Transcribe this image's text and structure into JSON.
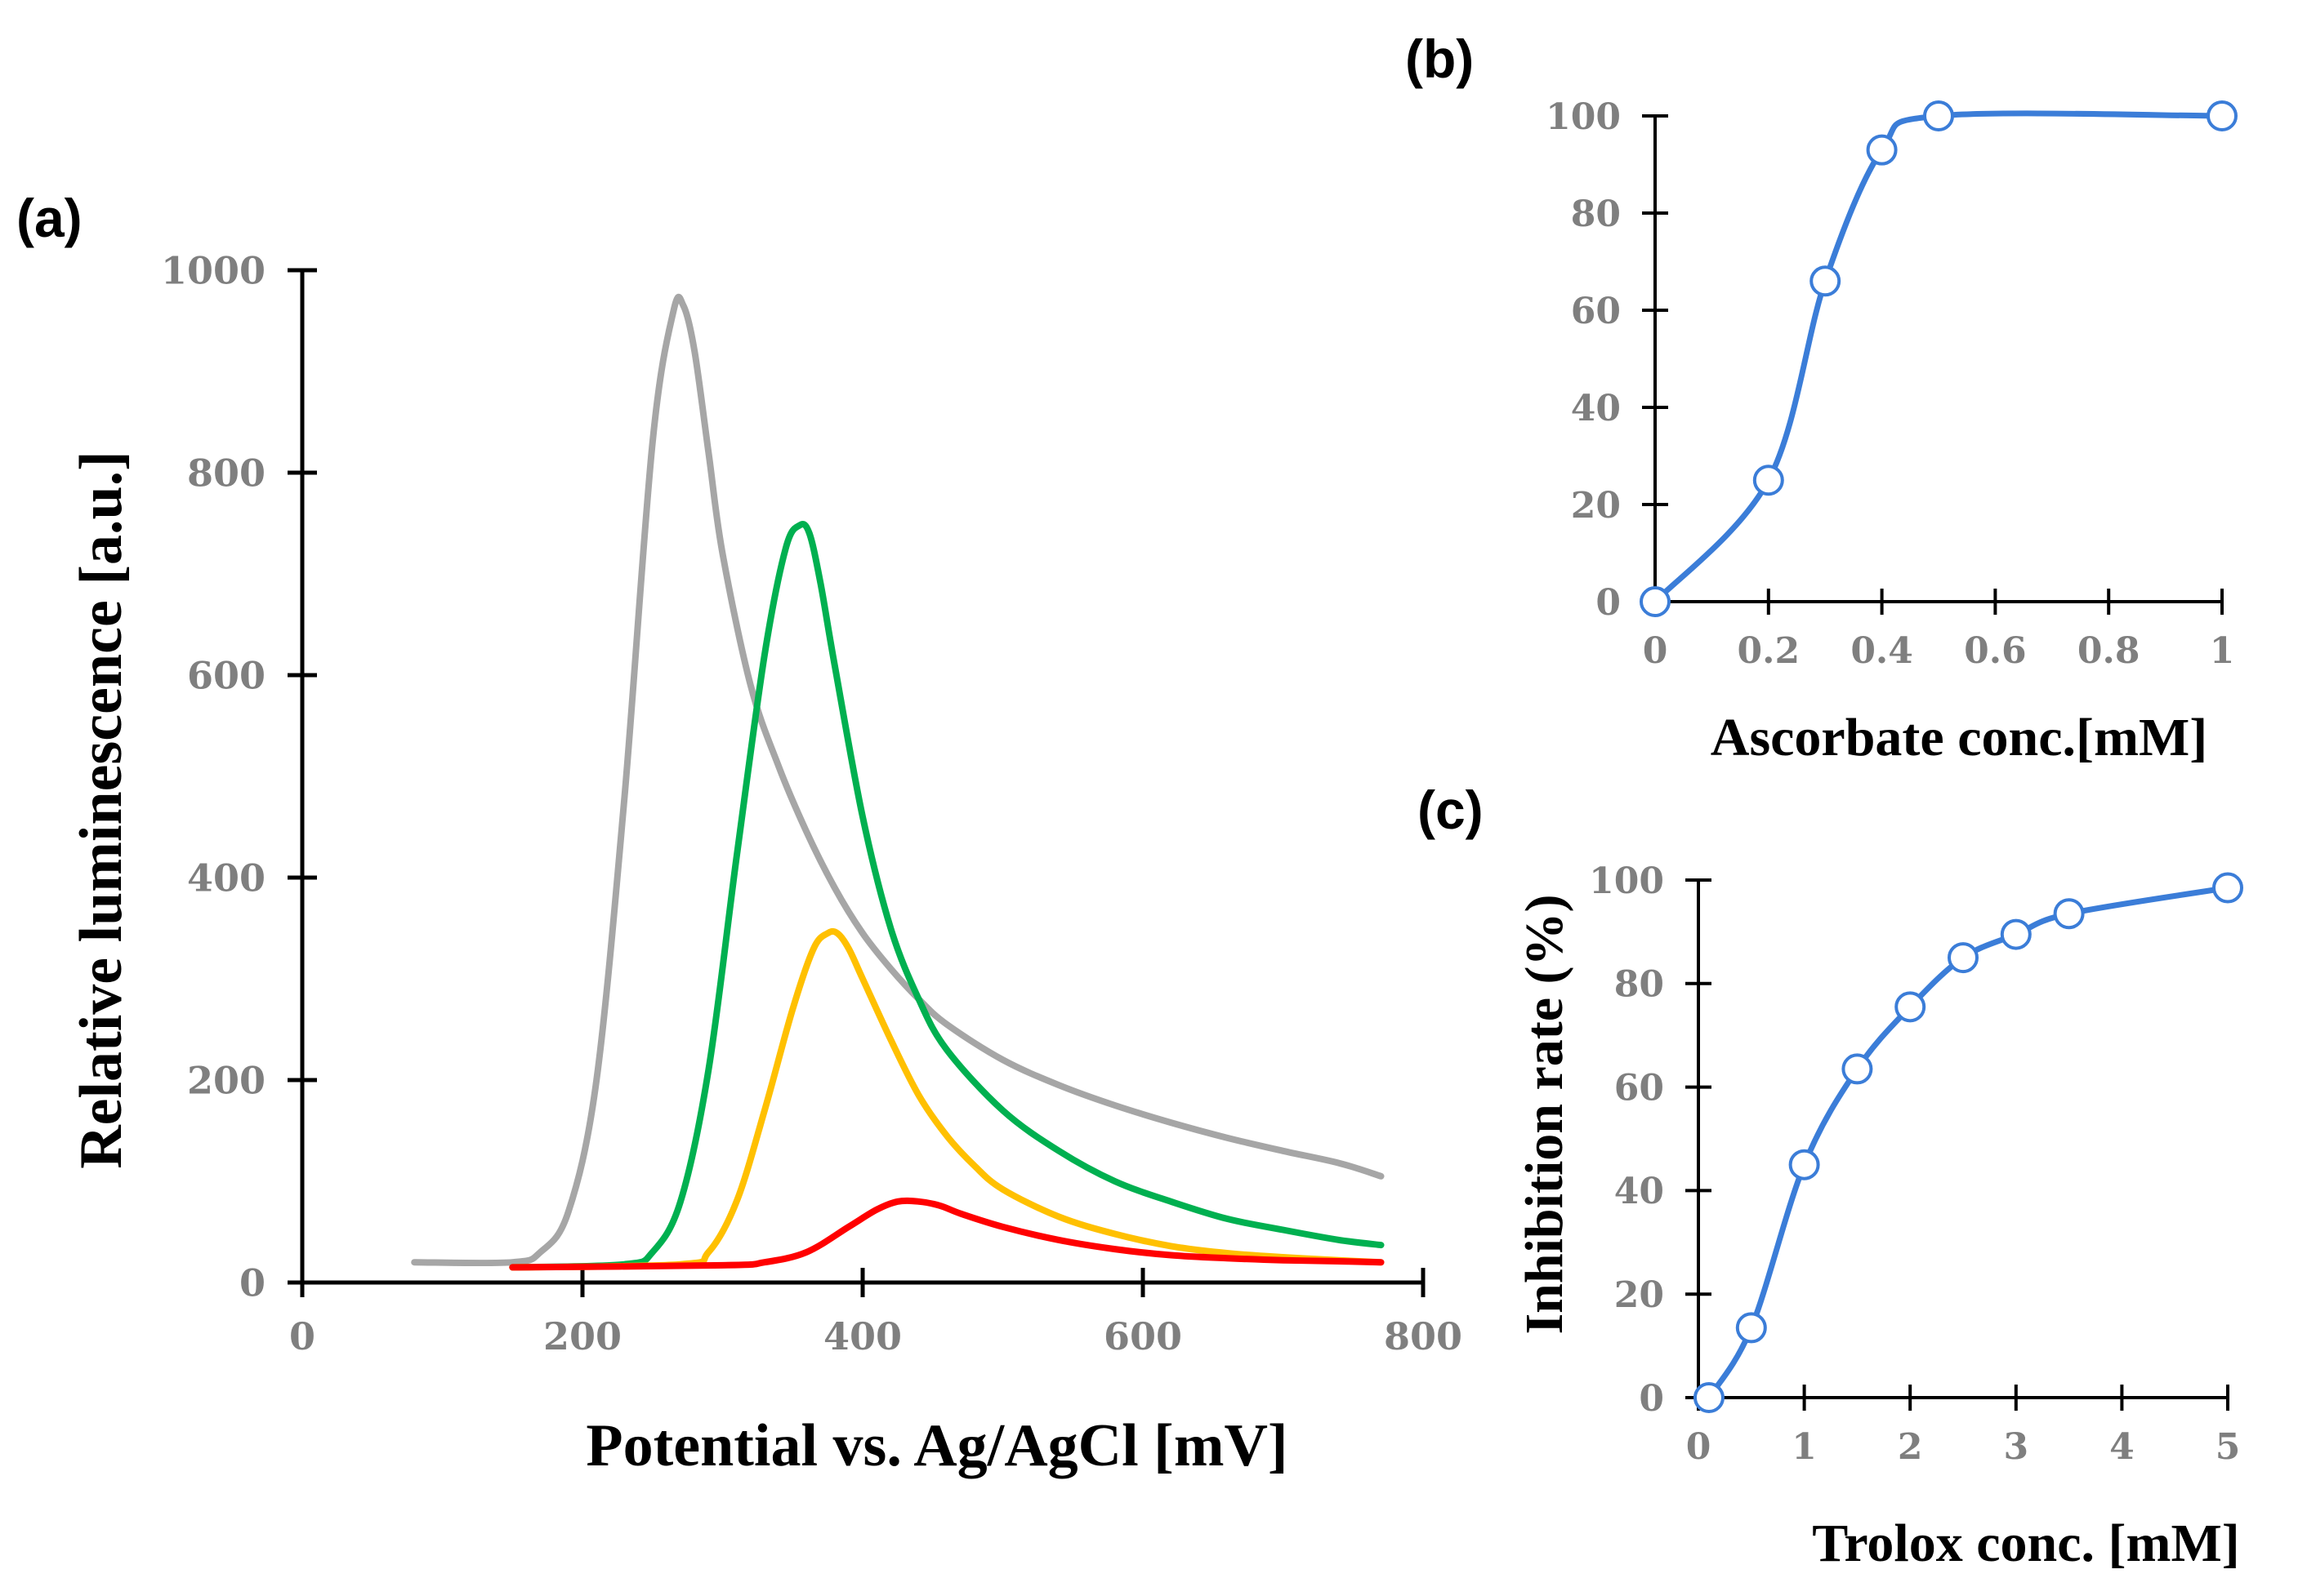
{
  "chart_data": [
    {
      "panel": "(a)",
      "type": "line",
      "xlabel": "Potential vs. Ag/AgCl [mV]",
      "ylabel": "Relative luminescence [a.u.]",
      "xlim": [
        0,
        800
      ],
      "ylim": [
        0,
        1000
      ],
      "xticks": [
        0,
        200,
        400,
        600,
        800
      ],
      "yticks": [
        0,
        200,
        400,
        600,
        800,
        1000
      ],
      "series": [
        {
          "name": "gray",
          "color": "#a6a6a6",
          "x": [
            80,
            150,
            170,
            190,
            210,
            230,
            250,
            265,
            272,
            280,
            290,
            300,
            320,
            340,
            360,
            380,
            400,
            420,
            440,
            460,
            500,
            540,
            580,
            620,
            660,
            700,
            740,
            770
          ],
          "y": [
            20,
            20,
            30,
            70,
            200,
            480,
            830,
            960,
            965,
            920,
            820,
            720,
            590,
            510,
            445,
            390,
            345,
            310,
            280,
            255,
            220,
            195,
            175,
            158,
            143,
            130,
            118,
            105
          ]
        },
        {
          "name": "green",
          "color": "#00b050",
          "x": [
            150,
            230,
            250,
            270,
            290,
            310,
            330,
            345,
            355,
            362,
            370,
            380,
            400,
            420,
            440,
            460,
            500,
            540,
            580,
            620,
            660,
            700,
            740,
            770
          ],
          "y": [
            15,
            18,
            30,
            80,
            210,
            420,
            620,
            725,
            748,
            740,
            690,
            610,
            460,
            350,
            280,
            230,
            170,
            130,
            100,
            80,
            63,
            52,
            42,
            37
          ]
        },
        {
          "name": "yellow",
          "color": "#ffc000",
          "x": [
            150,
            270,
            290,
            310,
            330,
            350,
            365,
            375,
            382,
            390,
            400,
            420,
            440,
            460,
            480,
            500,
            540,
            580,
            620,
            660,
            700,
            740,
            770
          ],
          "y": [
            15,
            18,
            30,
            80,
            170,
            270,
            330,
            345,
            345,
            330,
            300,
            240,
            185,
            145,
            115,
            92,
            65,
            48,
            36,
            29,
            25,
            22,
            20
          ]
        },
        {
          "name": "red",
          "color": "#ff0000",
          "x": [
            150,
            300,
            330,
            360,
            390,
            410,
            425,
            440,
            455,
            470,
            500,
            540,
            580,
            620,
            660,
            700,
            740,
            770
          ],
          "y": [
            15,
            17,
            20,
            30,
            55,
            72,
            80,
            80,
            76,
            68,
            55,
            42,
            33,
            27,
            24,
            22,
            21,
            20
          ]
        }
      ]
    },
    {
      "panel": "(b)",
      "type": "line",
      "xlabel": "Ascorbate conc.[mM]",
      "ylabel": "",
      "xlim": [
        0,
        1
      ],
      "ylim": [
        0,
        100
      ],
      "xticks": [
        0,
        0.2,
        0.4,
        0.6,
        0.8,
        1
      ],
      "xtick_labels": [
        "0",
        "0.2",
        "0.4",
        "0.6",
        "0.8",
        "1"
      ],
      "yticks": [
        0,
        20,
        40,
        60,
        80,
        100
      ],
      "series": [
        {
          "name": "Inhibition rate",
          "color": "#3b7dd8",
          "x": [
            0,
            0.2,
            0.3,
            0.4,
            0.5,
            1.0
          ],
          "y": [
            0,
            25,
            66,
            93,
            100,
            100
          ]
        }
      ]
    },
    {
      "panel": "(c)",
      "type": "line",
      "xlabel": "Trolox conc. [mM]",
      "ylabel": "Inhibition rate (%)",
      "xlim": [
        0,
        5
      ],
      "ylim": [
        0,
        100
      ],
      "xticks": [
        0,
        1,
        2,
        3,
        4,
        5
      ],
      "yticks": [
        0,
        20,
        40,
        60,
        80,
        100
      ],
      "series": [
        {
          "name": "Inhibition rate",
          "color": "#3b7dd8",
          "x": [
            0.1,
            0.5,
            1.0,
            1.5,
            2.0,
            2.5,
            3.0,
            3.5,
            5.0
          ],
          "y": [
            0,
            13.5,
            45,
            63.5,
            75.5,
            85,
            89.5,
            93.5,
            98.5
          ]
        }
      ]
    }
  ],
  "colors": {
    "axis": "#000000",
    "tick_label": "#7f7f7f",
    "marker_fill": "#ffffff",
    "marker_stroke": "#3b7dd8"
  }
}
